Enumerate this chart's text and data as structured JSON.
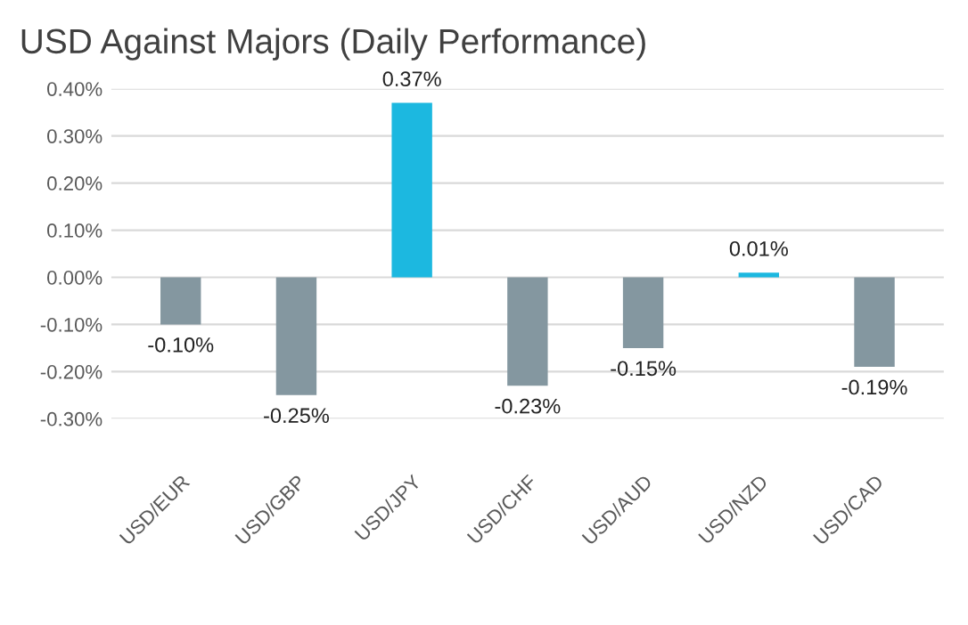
{
  "chart_data": {
    "type": "bar",
    "title": "USD Against Majors (Daily Performance)",
    "categories": [
      "USD/EUR",
      "USD/GBP",
      "USD/JPY",
      "USD/CHF",
      "USD/AUD",
      "USD/NZD",
      "USD/CAD"
    ],
    "values": [
      -0.1,
      -0.25,
      0.37,
      -0.23,
      -0.15,
      0.01,
      -0.19
    ],
    "colors": [
      "#8497a0",
      "#8497a0",
      "#1cb8e0",
      "#8497a0",
      "#8497a0",
      "#1cb8e0",
      "#8497a0"
    ],
    "value_labels": [
      "-0.10%",
      "-0.25%",
      "0.37%",
      "-0.23%",
      "-0.15%",
      "0.01%",
      "-0.19%"
    ],
    "ylim": [
      -0.3,
      0.4
    ],
    "yticks": [
      {
        "value": -0.3,
        "label": "-0.30%"
      },
      {
        "value": -0.2,
        "label": "-0.20%"
      },
      {
        "value": -0.1,
        "label": "-0.10%"
      },
      {
        "value": 0,
        "label": "0.00%"
      },
      {
        "value": 0.1,
        "label": "0.10%"
      },
      {
        "value": 0.2,
        "label": "0.20%"
      },
      {
        "value": 0.3,
        "label": "0.30%"
      },
      {
        "value": 0.4,
        "label": "0.40%"
      }
    ],
    "grid": "y",
    "legend": false
  }
}
